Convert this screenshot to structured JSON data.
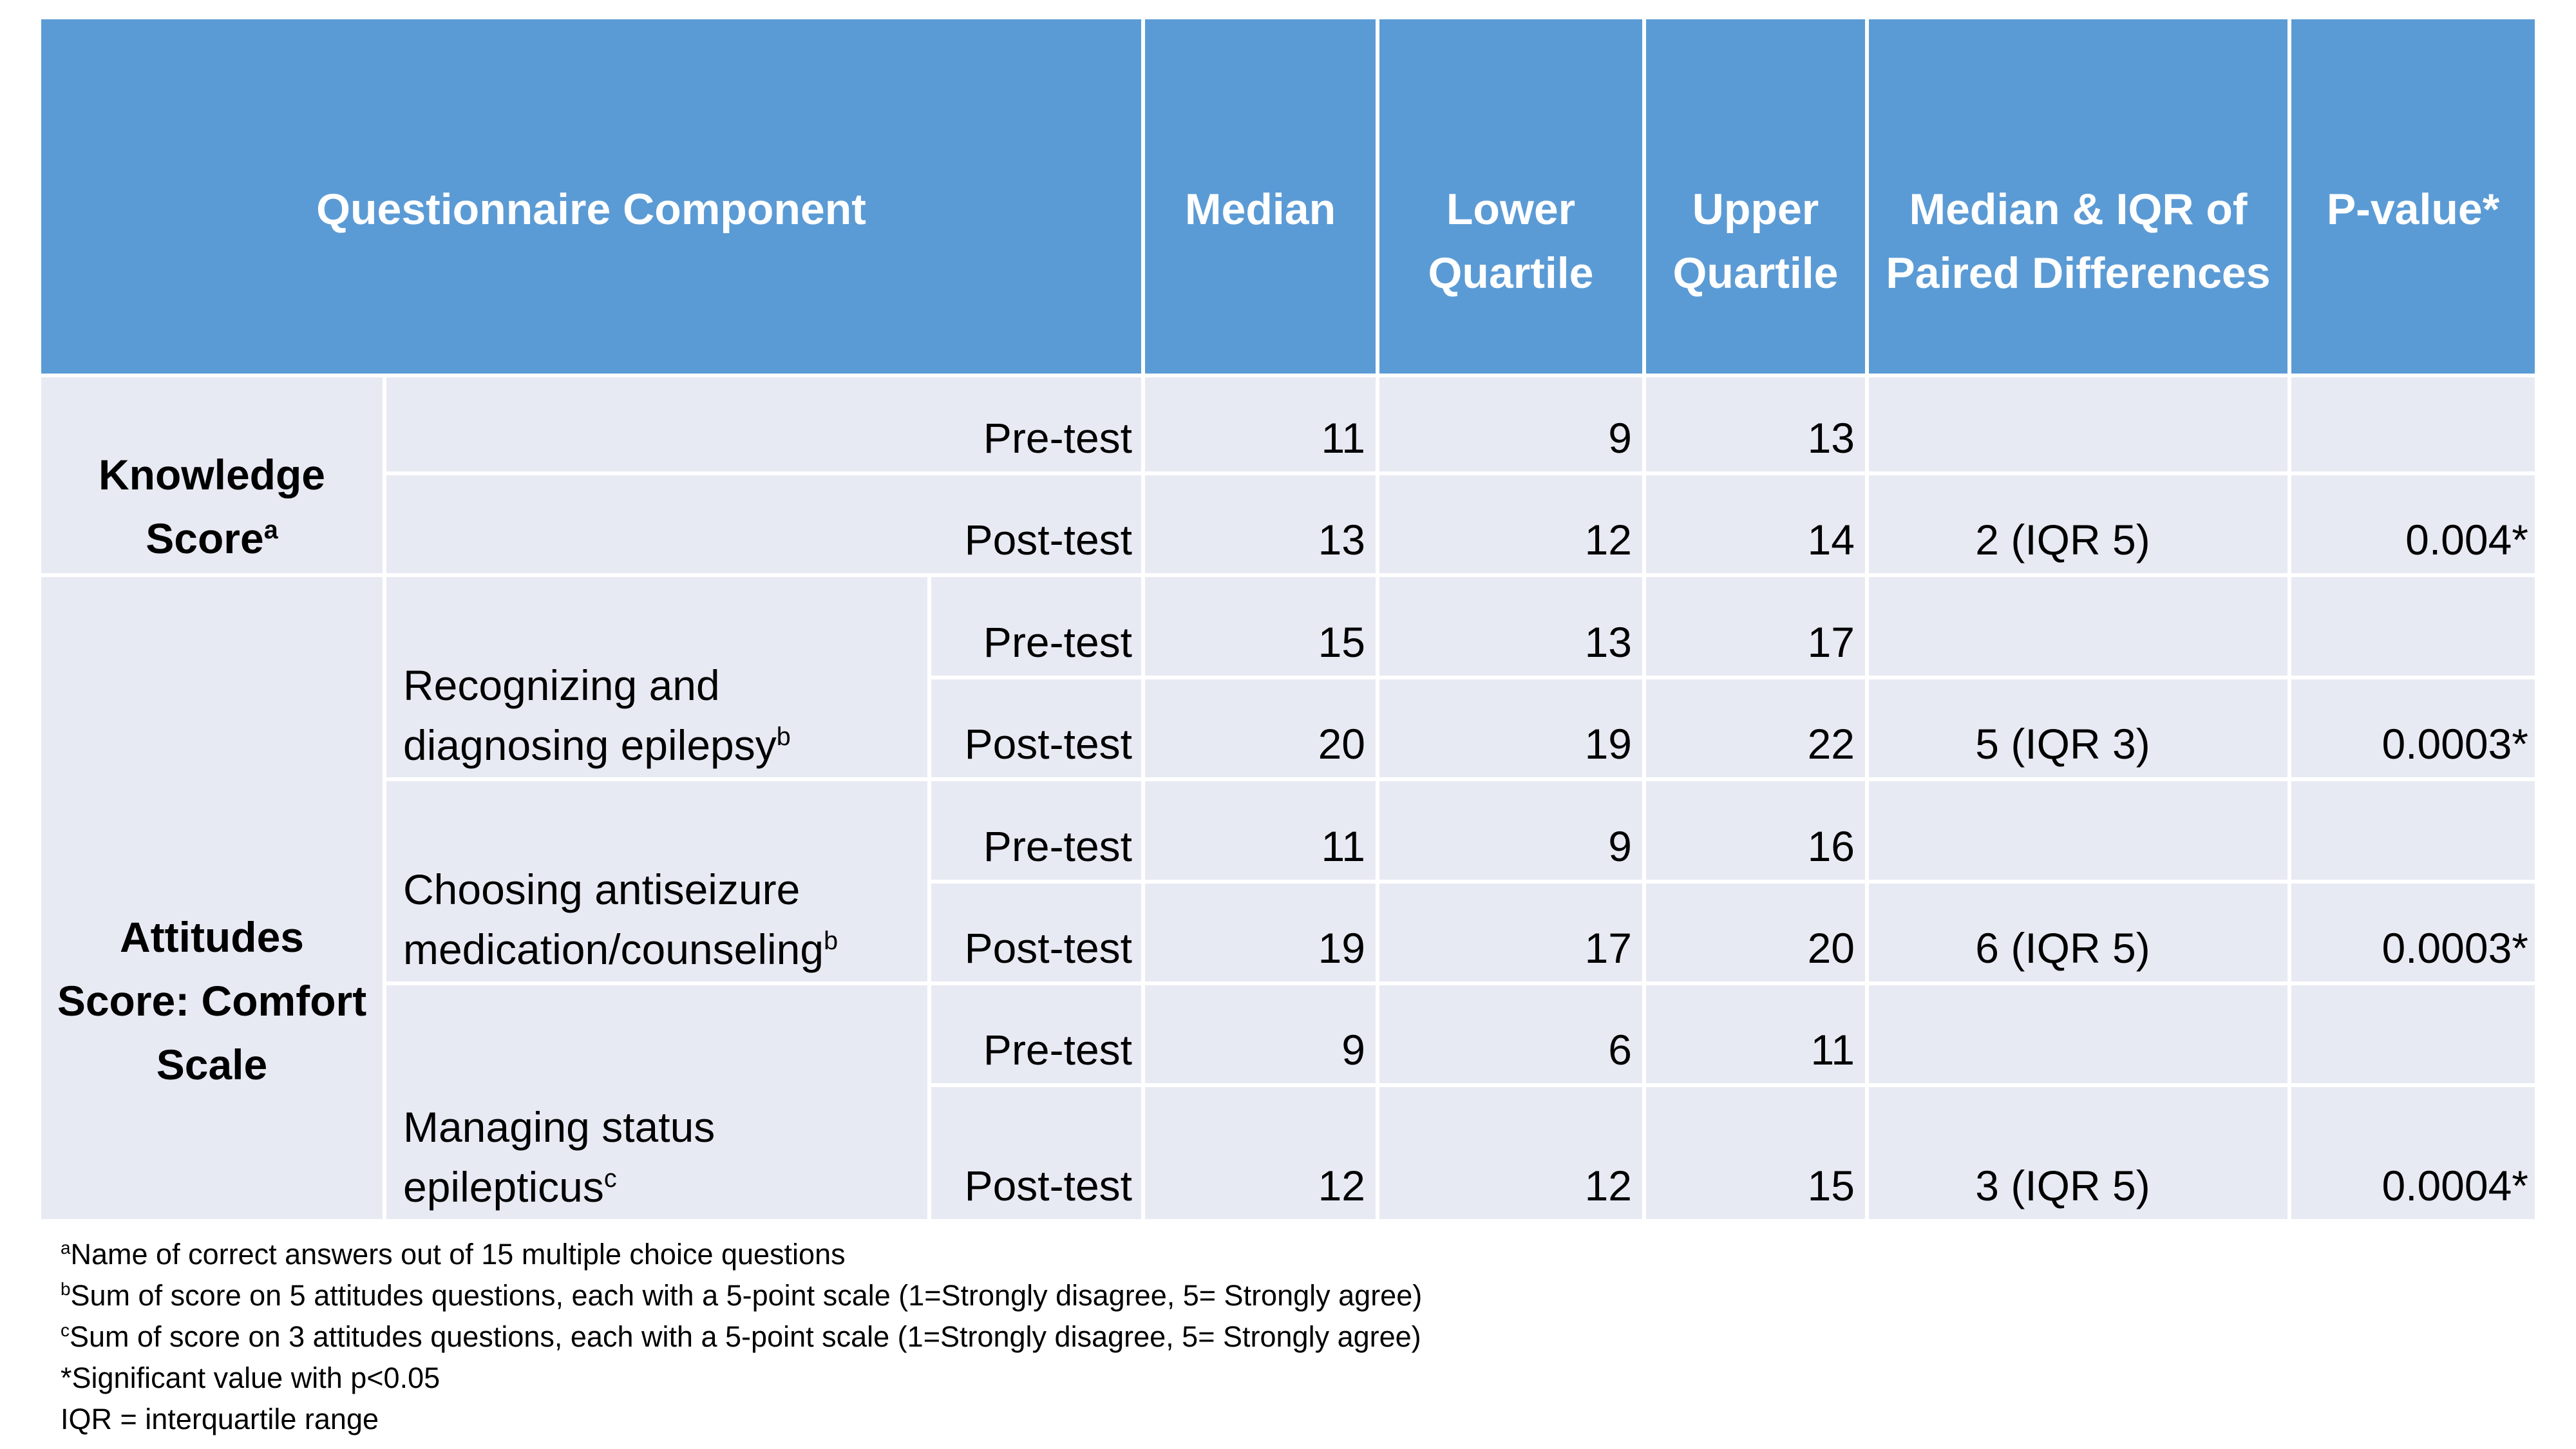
{
  "table": {
    "header": {
      "questionnaire_component": "Questionnaire Component",
      "median": "Median",
      "lower_quartile": "Lower Quartile",
      "upper_quartile": "Upper Quartile",
      "paired_diff": "Median & IQR of Paired Differences",
      "p_value": "P-value*"
    },
    "groups": {
      "knowledge": {
        "line1": "Knowledge",
        "line2": "Score",
        "sup": "a"
      },
      "attitudes": {
        "line1": "Attitudes",
        "line2": "Score: Comfort",
        "line3": "Scale"
      }
    },
    "components": {
      "recognizing": {
        "text": "Recognizing and diagnosing epilepsy",
        "sup": "b"
      },
      "choosing": {
        "text": "Choosing antiseizure medication/counseling",
        "sup": "b"
      },
      "managing": {
        "text": "Managing status epilepticus",
        "sup": "c"
      }
    },
    "rows": [
      {
        "test": "Pre-test",
        "median": "11",
        "lower": "9",
        "upper": "13",
        "diff": "",
        "p": ""
      },
      {
        "test": "Post-test",
        "median": "13",
        "lower": "12",
        "upper": "14",
        "diff": "2 (IQR 5)",
        "p": "0.004*"
      },
      {
        "test": "Pre-test",
        "median": "15",
        "lower": "13",
        "upper": "17",
        "diff": "",
        "p": ""
      },
      {
        "test": "Post-test",
        "median": "20",
        "lower": "19",
        "upper": "22",
        "diff": "5 (IQR 3)",
        "p": "0.0003*"
      },
      {
        "test": "Pre-test",
        "median": "11",
        "lower": "9",
        "upper": "16",
        "diff": "",
        "p": ""
      },
      {
        "test": "Post-test",
        "median": "19",
        "lower": "17",
        "upper": "20",
        "diff": "6 (IQR 5)",
        "p": "0.0003*"
      },
      {
        "test": "Pre-test",
        "median": "9",
        "lower": "6",
        "upper": "11",
        "diff": "",
        "p": ""
      },
      {
        "test": "Post-test",
        "median": "12",
        "lower": "12",
        "upper": "15",
        "diff": "3 (IQR 5)",
        "p": "0.0004*"
      }
    ],
    "colors": {
      "header_bg": "#5b9bd5",
      "header_text": "#ffffff",
      "row_bg": "#e8eaf3",
      "gridline": "#ffffff",
      "body_text": "#000000"
    }
  },
  "footnotes": [
    {
      "sup": "a",
      "text": "Name of correct answers out of 15 multiple choice questions"
    },
    {
      "sup": "b",
      "text": "Sum of score on 5 attitudes questions, each with a 5-point scale (1=Strongly disagree, 5= Strongly agree)"
    },
    {
      "sup": "c",
      "text": "Sum of score on 3 attitudes questions, each with a 5-point scale (1=Strongly disagree, 5= Strongly agree)"
    },
    {
      "sup": "",
      "text": "*Significant value with p<0.05"
    },
    {
      "sup": "",
      "text": "IQR = interquartile range"
    }
  ]
}
